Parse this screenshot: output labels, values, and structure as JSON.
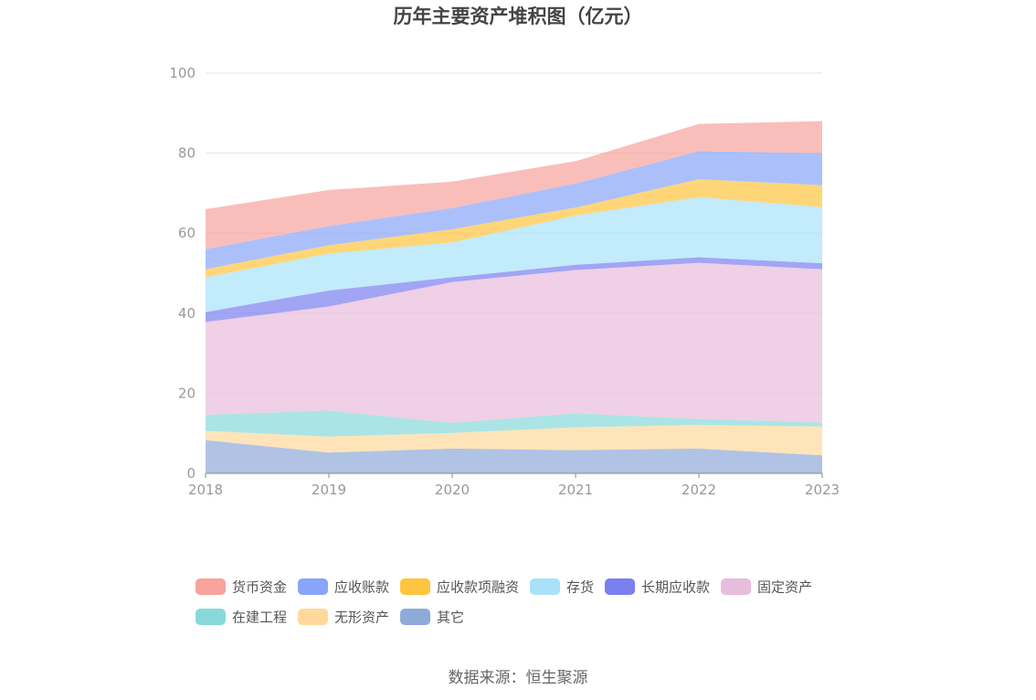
{
  "chart_data": {
    "type": "area",
    "stacked": true,
    "title": "历年主要资产堆积图（亿元）",
    "categories": [
      "2018",
      "2019",
      "2020",
      "2021",
      "2022",
      "2023"
    ],
    "ylim": [
      0,
      100
    ],
    "yticks": [
      0,
      20,
      40,
      60,
      80,
      100
    ],
    "grid": true,
    "legend_position": "bottom",
    "series": [
      {
        "name": "其它",
        "color": "#8eaad8",
        "values": [
          8.3,
          5.2,
          6.2,
          5.8,
          6.2,
          4.5
        ]
      },
      {
        "name": "无形资产",
        "color": "#fed99a",
        "values": [
          2.3,
          4.0,
          3.9,
          5.7,
          5.9,
          7.2
        ]
      },
      {
        "name": "在建工程",
        "color": "#88d8da",
        "values": [
          4.0,
          6.5,
          2.5,
          3.5,
          1.5,
          1.0
        ]
      },
      {
        "name": "固定资产",
        "color": "#e8bcdc",
        "values": [
          23.2,
          26.0,
          35.2,
          35.8,
          39.0,
          38.3
        ]
      },
      {
        "name": "长期应收款",
        "color": "#7b7ff0",
        "values": [
          2.5,
          4.0,
          1.2,
          1.3,
          1.4,
          1.5
        ]
      },
      {
        "name": "存货",
        "color": "#a8e2fa",
        "values": [
          8.7,
          9.2,
          8.7,
          12.3,
          15.0,
          14.0
        ]
      },
      {
        "name": "应收款项融资",
        "color": "#fec53e",
        "values": [
          2.0,
          2.1,
          3.3,
          2.0,
          4.5,
          5.5
        ]
      },
      {
        "name": "应收账款",
        "color": "#88a5f9",
        "values": [
          5.0,
          4.8,
          5.3,
          6.0,
          7.0,
          8.0
        ]
      },
      {
        "name": "货币资金",
        "color": "#f8a39c",
        "values": [
          10.0,
          9.0,
          6.6,
          5.6,
          6.8,
          8.0
        ]
      }
    ],
    "legend_order": [
      "货币资金",
      "应收账款",
      "应收款项融资",
      "存货",
      "长期应收款",
      "固定资产",
      "在建工程",
      "无形资产",
      "其它"
    ]
  },
  "source": "数据来源：恒生聚源"
}
